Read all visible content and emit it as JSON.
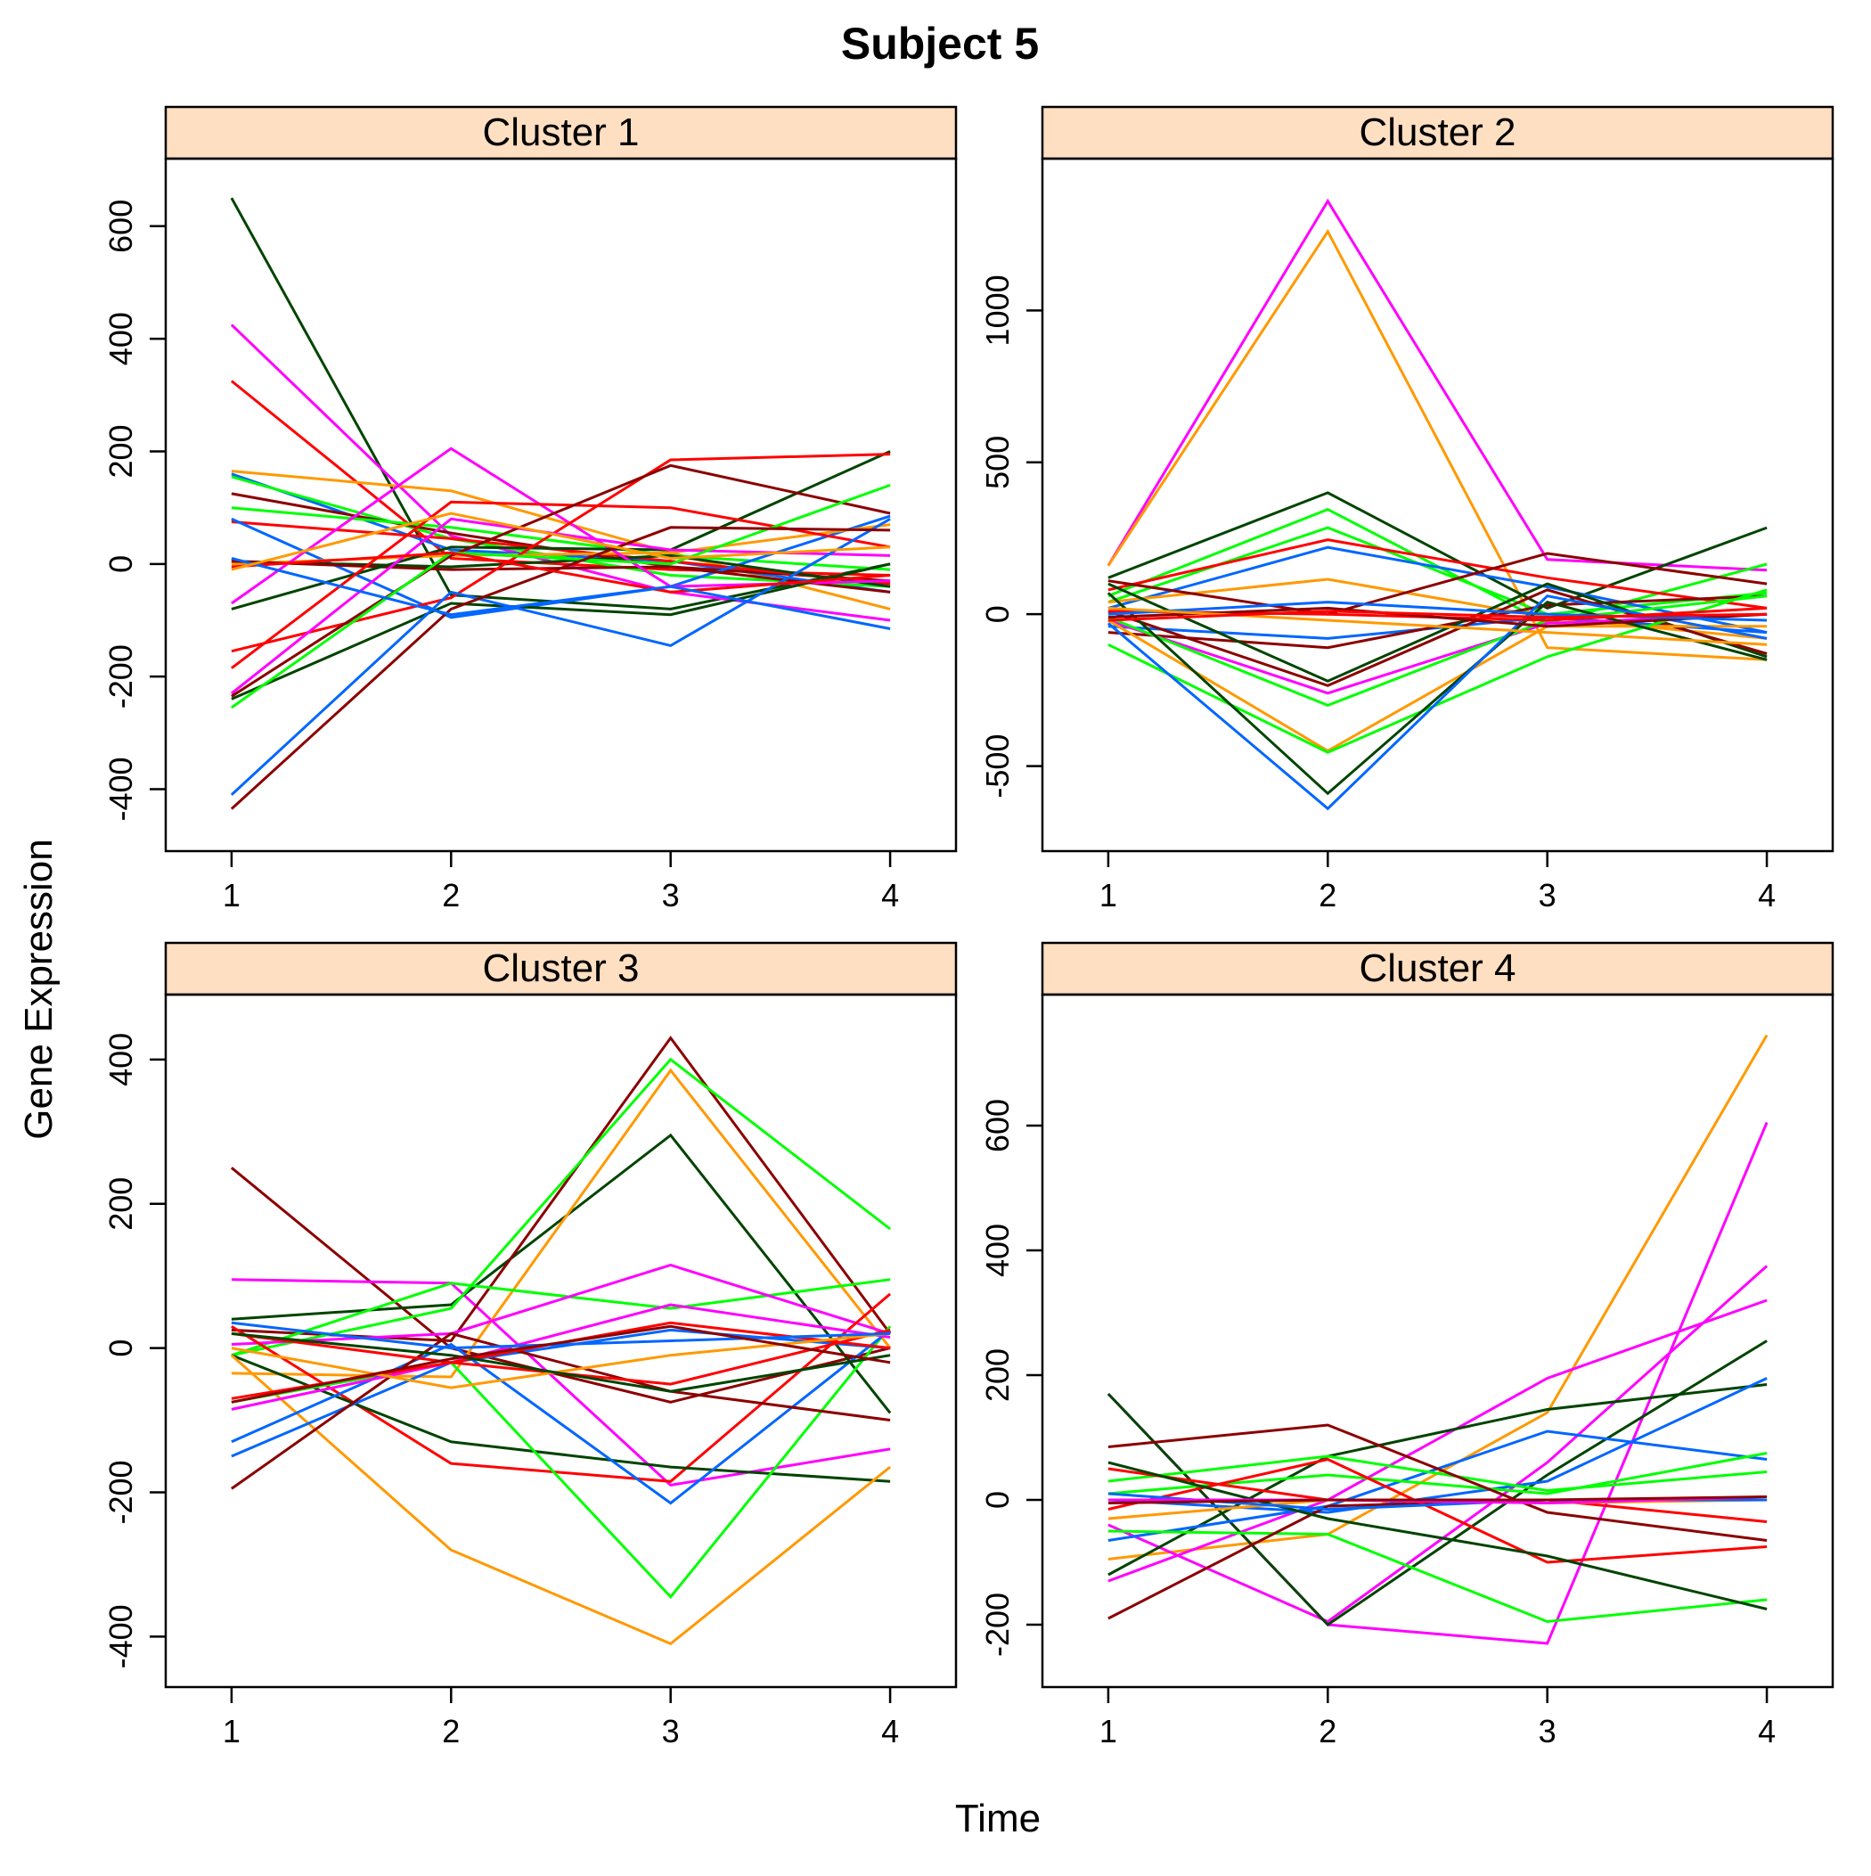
{
  "chart_data": {
    "type": "line",
    "title": "Subject 5",
    "xlabel": "Time",
    "ylabel": "Gene Expression",
    "grid": false,
    "strip_color": "#ffdfc1",
    "palette": [
      "#ff00ff",
      "#ff9900",
      "#00ff00",
      "#ff0000",
      "#8b0000",
      "#0066ff",
      "#004400"
    ],
    "panels": [
      {
        "title": "Cluster 1",
        "x": [
          1,
          2,
          3,
          4
        ],
        "xlim": [
          0.7,
          4.3
        ],
        "ylim": [
          -510,
          720
        ],
        "yticks": [
          -400,
          -200,
          0,
          200,
          400,
          600
        ],
        "xticks": [
          1,
          2,
          3,
          4
        ],
        "series": [
          {
            "color": "#004400",
            "values": [
              650,
              -55,
              -80,
              0
            ]
          },
          {
            "color": "#ff00ff",
            "values": [
              425,
              50,
              -50,
              -100
            ]
          },
          {
            "color": "#ff0000",
            "values": [
              325,
              10,
              -10,
              -20
            ]
          },
          {
            "color": "#ff9900",
            "values": [
              165,
              130,
              20,
              -80
            ]
          },
          {
            "color": "#0066ff",
            "values": [
              160,
              25,
              5,
              -50
            ]
          },
          {
            "color": "#00ff00",
            "values": [
              155,
              45,
              -20,
              -40
            ]
          },
          {
            "color": "#8b0000",
            "values": [
              125,
              55,
              -5,
              -30
            ]
          },
          {
            "color": "#00ff00",
            "values": [
              100,
              65,
              15,
              -10
            ]
          },
          {
            "color": "#ff0000",
            "values": [
              75,
              45,
              5,
              -35
            ]
          },
          {
            "color": "#0066ff",
            "values": [
              80,
              -95,
              -40,
              85
            ]
          },
          {
            "color": "#004400",
            "values": [
              5,
              -5,
              15,
              -40
            ]
          },
          {
            "color": "#ff9900",
            "values": [
              0,
              15,
              20,
              70
            ]
          },
          {
            "color": "#8b0000",
            "values": [
              5,
              -10,
              -5,
              -50
            ]
          },
          {
            "color": "#ff00ff",
            "values": [
              -70,
              205,
              -40,
              -30
            ]
          },
          {
            "color": "#004400",
            "values": [
              -80,
              30,
              25,
              200
            ]
          },
          {
            "color": "#ff0000",
            "values": [
              -155,
              -60,
              185,
              195
            ]
          },
          {
            "color": "#ff0000",
            "values": [
              -185,
              110,
              100,
              30
            ]
          },
          {
            "color": "#ff00ff",
            "values": [
              -230,
              80,
              25,
              15
            ]
          },
          {
            "color": "#8b0000",
            "values": [
              -235,
              15,
              175,
              90
            ]
          },
          {
            "color": "#004400",
            "values": [
              -240,
              -70,
              -90,
              0
            ]
          },
          {
            "color": "#00ff00",
            "values": [
              -255,
              20,
              0,
              140
            ]
          },
          {
            "color": "#0066ff",
            "values": [
              -410,
              -50,
              -145,
              80
            ]
          },
          {
            "color": "#8b0000",
            "values": [
              -435,
              -80,
              65,
              60
            ]
          },
          {
            "color": "#ff0000",
            "values": [
              -5,
              20,
              -50,
              -20
            ]
          },
          {
            "color": "#0066ff",
            "values": [
              10,
              -90,
              -40,
              -115
            ]
          },
          {
            "color": "#ff9900",
            "values": [
              -10,
              90,
              10,
              30
            ]
          }
        ]
      },
      {
        "title": "Cluster 2",
        "x": [
          1,
          2,
          3,
          4
        ],
        "xlim": [
          0.7,
          4.3
        ],
        "ylim": [
          -780,
          1500
        ],
        "yticks": [
          -500,
          0,
          500,
          1000
        ],
        "xticks": [
          1,
          2,
          3,
          4
        ],
        "series": [
          {
            "color": "#ff00ff",
            "values": [
              160,
              1360,
              180,
              145
            ]
          },
          {
            "color": "#ff9900",
            "values": [
              160,
              1260,
              -110,
              -150
            ]
          },
          {
            "color": "#004400",
            "values": [
              120,
              400,
              20,
              285
            ]
          },
          {
            "color": "#00ff00",
            "values": [
              60,
              345,
              -30,
              165
            ]
          },
          {
            "color": "#00ff00",
            "values": [
              40,
              285,
              0,
              70
            ]
          },
          {
            "color": "#ff0000",
            "values": [
              80,
              245,
              120,
              20
            ]
          },
          {
            "color": "#0066ff",
            "values": [
              20,
              220,
              90,
              -60
            ]
          },
          {
            "color": "#ff9900",
            "values": [
              40,
              115,
              -10,
              -80
            ]
          },
          {
            "color": "#8b0000",
            "values": [
              110,
              0,
              200,
              100
            ]
          },
          {
            "color": "#0066ff",
            "values": [
              -40,
              -80,
              -10,
              -60
            ]
          },
          {
            "color": "#8b0000",
            "values": [
              -60,
              -110,
              30,
              60
            ]
          },
          {
            "color": "#004400",
            "values": [
              100,
              -220,
              100,
              -140
            ]
          },
          {
            "color": "#8b0000",
            "values": [
              10,
              -235,
              80,
              -130
            ]
          },
          {
            "color": "#ff00ff",
            "values": [
              -20,
              -260,
              -30,
              0
            ]
          },
          {
            "color": "#00ff00",
            "values": [
              -10,
              -300,
              -20,
              60
            ]
          },
          {
            "color": "#ff9900",
            "values": [
              -20,
              -450,
              -40,
              -40
            ]
          },
          {
            "color": "#00ff00",
            "values": [
              -100,
              -455,
              -140,
              80
            ]
          },
          {
            "color": "#004400",
            "values": [
              70,
              -590,
              40,
              -150
            ]
          },
          {
            "color": "#0066ff",
            "values": [
              -30,
              -640,
              60,
              -80
            ]
          },
          {
            "color": "#ff0000",
            "values": [
              10,
              0,
              -20,
              20
            ]
          },
          {
            "color": "#8b0000",
            "values": [
              -10,
              20,
              -40,
              0
            ]
          },
          {
            "color": "#0066ff",
            "values": [
              0,
              40,
              0,
              -20
            ]
          },
          {
            "color": "#ff9900",
            "values": [
              20,
              -20,
              -60,
              -100
            ]
          },
          {
            "color": "#ff0000",
            "values": [
              -20,
              10,
              -10,
              0
            ]
          }
        ]
      },
      {
        "title": "Cluster 3",
        "x": [
          1,
          2,
          3,
          4
        ],
        "xlim": [
          0.7,
          4.3
        ],
        "ylim": [
          -470,
          490
        ],
        "yticks": [
          -400,
          -200,
          0,
          200,
          400
        ],
        "xticks": [
          1,
          2,
          3,
          4
        ],
        "series": [
          {
            "color": "#8b0000",
            "values": [
              250,
              0,
              -75,
              0
            ]
          },
          {
            "color": "#ff00ff",
            "values": [
              95,
              90,
              -190,
              -140
            ]
          },
          {
            "color": "#004400",
            "values": [
              40,
              60,
              295,
              -90
            ]
          },
          {
            "color": "#8b0000",
            "values": [
              25,
              10,
              430,
              20
            ]
          },
          {
            "color": "#00ff00",
            "values": [
              -10,
              55,
              400,
              165
            ]
          },
          {
            "color": "#ff9900",
            "values": [
              -35,
              -40,
              385,
              0
            ]
          },
          {
            "color": "#00ff00",
            "values": [
              -10,
              90,
              55,
              95
            ]
          },
          {
            "color": "#ff00ff",
            "values": [
              5,
              20,
              115,
              20
            ]
          },
          {
            "color": "#ff0000",
            "values": [
              30,
              -160,
              -185,
              75
            ]
          },
          {
            "color": "#004400",
            "values": [
              -10,
              -130,
              -165,
              -185
            ]
          },
          {
            "color": "#ff9900",
            "values": [
              -10,
              -280,
              -410,
              -165
            ]
          },
          {
            "color": "#00ff00",
            "values": [
              -75,
              -20,
              -345,
              30
            ]
          },
          {
            "color": "#0066ff",
            "values": [
              -130,
              5,
              -215,
              25
            ]
          },
          {
            "color": "#0066ff",
            "values": [
              -150,
              -20,
              25,
              0
            ]
          },
          {
            "color": "#8b0000",
            "values": [
              -195,
              20,
              -60,
              -100
            ]
          },
          {
            "color": "#ff00ff",
            "values": [
              -85,
              -20,
              60,
              15
            ]
          },
          {
            "color": "#ff0000",
            "values": [
              -70,
              -20,
              35,
              0
            ]
          },
          {
            "color": "#ff0000",
            "values": [
              20,
              -20,
              -50,
              25
            ]
          },
          {
            "color": "#ff9900",
            "values": [
              0,
              -55,
              -10,
              20
            ]
          },
          {
            "color": "#0066ff",
            "values": [
              35,
              0,
              10,
              20
            ]
          },
          {
            "color": "#004400",
            "values": [
              20,
              -10,
              -60,
              -10
            ]
          },
          {
            "color": "#8b0000",
            "values": [
              -75,
              -15,
              30,
              -20
            ]
          }
        ]
      },
      {
        "title": "Cluster 4",
        "x": [
          1,
          2,
          3,
          4
        ],
        "xlim": [
          0.7,
          4.3
        ],
        "ylim": [
          -300,
          810
        ],
        "yticks": [
          -200,
          0,
          200,
          400,
          600
        ],
        "xticks": [
          1,
          2,
          3,
          4
        ],
        "series": [
          {
            "color": "#ff9900",
            "values": [
              -95,
              -55,
              140,
              745
            ]
          },
          {
            "color": "#ff00ff",
            "values": [
              170,
              -200,
              -230,
              605
            ]
          },
          {
            "color": "#ff00ff",
            "values": [
              -40,
              -195,
              60,
              375
            ]
          },
          {
            "color": "#ff00ff",
            "values": [
              -130,
              0,
              195,
              320
            ]
          },
          {
            "color": "#004400",
            "values": [
              -120,
              70,
              145,
              185
            ]
          },
          {
            "color": "#004400",
            "values": [
              170,
              -200,
              40,
              255
            ]
          },
          {
            "color": "#0066ff",
            "values": [
              -65,
              -10,
              110,
              65
            ]
          },
          {
            "color": "#0066ff",
            "values": [
              0,
              -20,
              30,
              195
            ]
          },
          {
            "color": "#00ff00",
            "values": [
              10,
              40,
              10,
              75
            ]
          },
          {
            "color": "#00ff00",
            "values": [
              30,
              70,
              15,
              45
            ]
          },
          {
            "color": "#00ff00",
            "values": [
              -50,
              -55,
              -195,
              -160
            ]
          },
          {
            "color": "#8b0000",
            "values": [
              85,
              120,
              -20,
              -65
            ]
          },
          {
            "color": "#8b0000",
            "values": [
              -190,
              -10,
              0,
              0
            ]
          },
          {
            "color": "#ff0000",
            "values": [
              -15,
              65,
              -100,
              -75
            ]
          },
          {
            "color": "#ff0000",
            "values": [
              50,
              0,
              0,
              -35
            ]
          },
          {
            "color": "#004400",
            "values": [
              60,
              -30,
              -90,
              -175
            ]
          },
          {
            "color": "#ff9900",
            "values": [
              -30,
              0,
              -5,
              0
            ]
          },
          {
            "color": "#0066ff",
            "values": [
              10,
              -15,
              0,
              0
            ]
          },
          {
            "color": "#ff00ff",
            "values": [
              0,
              0,
              -5,
              5
            ]
          },
          {
            "color": "#8b0000",
            "values": [
              -5,
              0,
              0,
              5
            ]
          }
        ]
      }
    ]
  }
}
